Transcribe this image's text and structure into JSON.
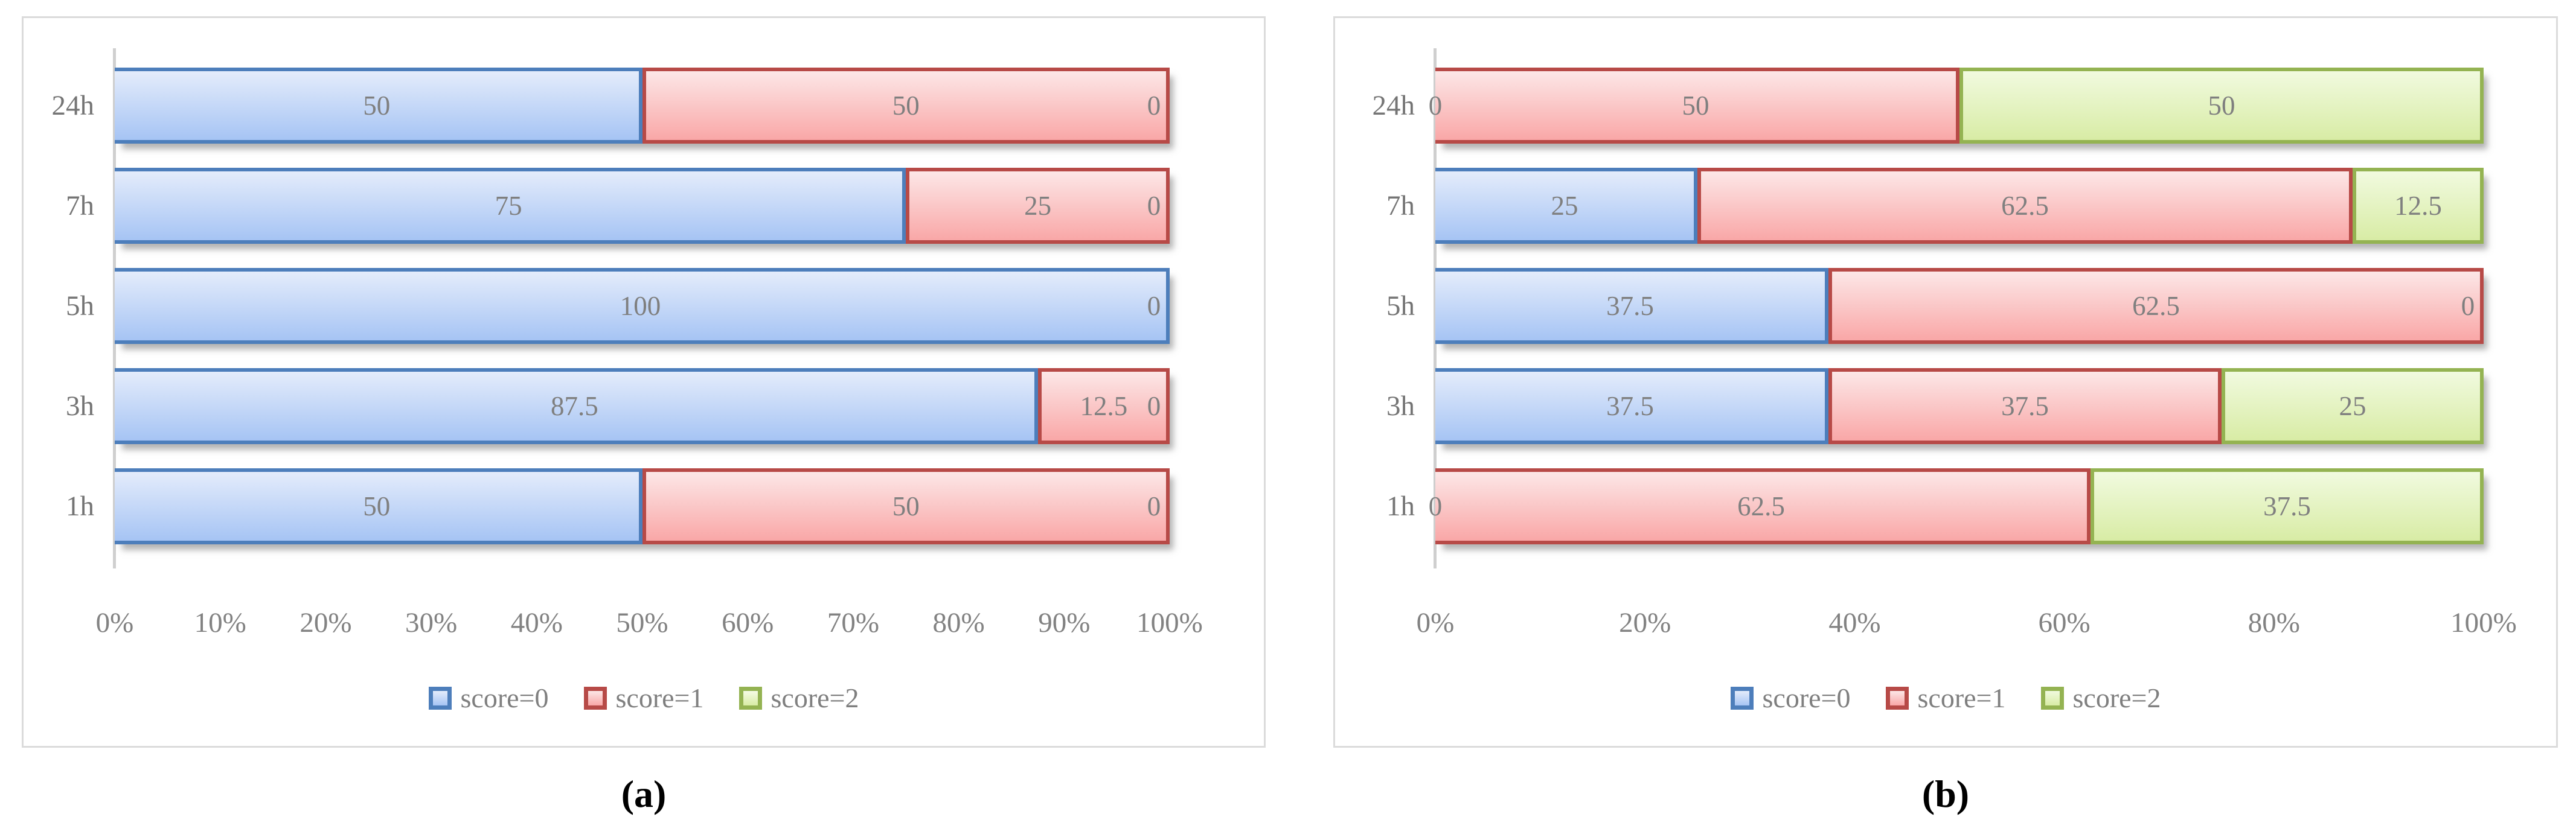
{
  "panels": [
    {
      "caption": "(a)"
    },
    {
      "caption": "(b)"
    }
  ],
  "colors": {
    "panel_border": "#dbdbdb",
    "axis_line": "#cfcfcf",
    "label_text": "#7f7f7f",
    "category_text": "#757575",
    "tick_text": "#828282",
    "caption_text": "#000000"
  },
  "chart_data": [
    {
      "type": "bar",
      "orientation": "horizontal",
      "stacked": true,
      "unit": "percent",
      "title": "",
      "xlabel": "",
      "ylabel": "",
      "xlim": [
        0,
        100
      ],
      "grid": false,
      "legend_position": "bottom",
      "categories": [
        "1h",
        "3h",
        "5h",
        "7h",
        "24h"
      ],
      "row_order_top_to_bottom": [
        "24h",
        "7h",
        "5h",
        "3h",
        "1h"
      ],
      "xtick_labels": [
        "0%",
        "10%",
        "20%",
        "30%",
        "40%",
        "50%",
        "60%",
        "70%",
        "80%",
        "90%",
        "100%"
      ],
      "series": [
        {
          "name": "score=0",
          "border": "#4d7ebb",
          "fill_top": "#e4ecfb",
          "fill_bottom": "#a6c4f4",
          "values": [
            50,
            87.5,
            100,
            75,
            50
          ]
        },
        {
          "name": "score=1",
          "border": "#b74a47",
          "fill_top": "#fce7e7",
          "fill_bottom": "#f9a7a7",
          "values": [
            50,
            12.5,
            0,
            25,
            50
          ]
        },
        {
          "name": "score=2",
          "border": "#94b352",
          "fill_top": "#f5fbe5",
          "fill_bottom": "#d8eca5",
          "values": [
            0,
            0,
            0,
            0,
            0
          ]
        }
      ]
    },
    {
      "type": "bar",
      "orientation": "horizontal",
      "stacked": true,
      "unit": "percent",
      "title": "",
      "xlabel": "",
      "ylabel": "",
      "xlim": [
        0,
        100
      ],
      "grid": false,
      "legend_position": "bottom",
      "categories": [
        "1h",
        "3h",
        "5h",
        "7h",
        "24h"
      ],
      "row_order_top_to_bottom": [
        "24h",
        "7h",
        "5h",
        "3h",
        "1h"
      ],
      "xtick_labels": [
        "0%",
        "20%",
        "40%",
        "60%",
        "80%",
        "100%"
      ],
      "series": [
        {
          "name": "score=0",
          "border": "#4d7ebb",
          "fill_top": "#e4ecfb",
          "fill_bottom": "#a6c4f4",
          "values": [
            0,
            37.5,
            37.5,
            25,
            0
          ]
        },
        {
          "name": "score=1",
          "border": "#b74a47",
          "fill_top": "#fce7e7",
          "fill_bottom": "#f9a7a7",
          "values": [
            62.5,
            37.5,
            62.5,
            62.5,
            50
          ]
        },
        {
          "name": "score=2",
          "border": "#94b352",
          "fill_top": "#f1fadf",
          "fill_bottom": "#d8eca5",
          "values": [
            37.5,
            25,
            0,
            12.5,
            50
          ]
        }
      ]
    }
  ]
}
